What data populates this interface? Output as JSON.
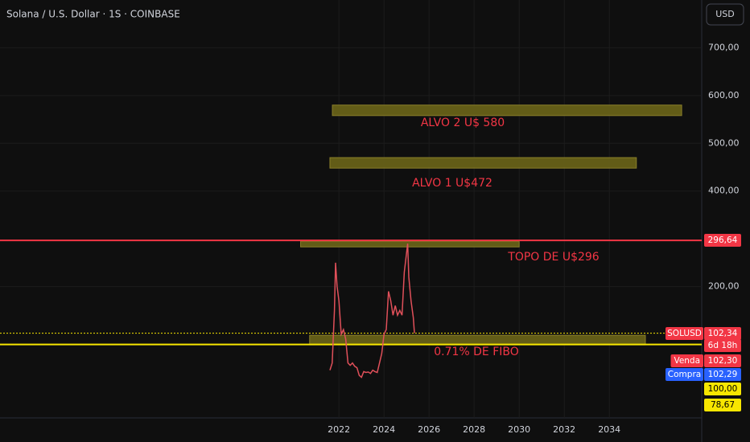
{
  "header": {
    "symbol": "Solana / U.S. Dollar · 1S · COINBASE",
    "currency_button": "USD"
  },
  "chart_data": {
    "type": "line",
    "x": [
      2021.6,
      2021.7,
      2021.8,
      2021.85,
      2021.92,
      2022.0,
      2022.1,
      2022.2,
      2022.3,
      2022.4,
      2022.5,
      2022.6,
      2022.7,
      2022.8,
      2022.9,
      2023.0,
      2023.1,
      2023.2,
      2023.3,
      2023.4,
      2023.5,
      2023.6,
      2023.7,
      2023.8,
      2023.9,
      2024.0,
      2024.1,
      2024.2,
      2024.3,
      2024.4,
      2024.5,
      2024.6,
      2024.7,
      2024.8,
      2024.9,
      2025.05,
      2025.1,
      2025.2,
      2025.3,
      2025.35
    ],
    "series": [
      {
        "name": "SOLUSD",
        "color": "#e0505a",
        "values": [
          25,
          40,
          150,
          250,
          200,
          170,
          100,
          110,
          90,
          40,
          35,
          40,
          33,
          30,
          14,
          10,
          22,
          20,
          21,
          18,
          25,
          22,
          20,
          40,
          60,
          100,
          110,
          190,
          170,
          140,
          160,
          140,
          150,
          140,
          230,
          290,
          220,
          170,
          135,
          102.34
        ]
      }
    ],
    "xlim": [
      2006.96,
      2038.1
    ],
    "xticks": [
      2022,
      2024,
      2026,
      2028,
      2030,
      2032,
      2034
    ],
    "ylim": [
      -75,
      800
    ],
    "yticks": [
      {
        "value": 200,
        "label": "200,00"
      },
      {
        "value": 400,
        "label": "400,00"
      },
      {
        "value": 500,
        "label": "500,00"
      },
      {
        "value": 600,
        "label": "600,00"
      },
      {
        "value": 700,
        "label": "700,00"
      }
    ],
    "grid": true,
    "zones": [
      {
        "label": "ALVO 2 U$ 580",
        "x": [
          2021.71,
          2037.21
        ],
        "y": [
          558,
          580
        ],
        "color": "#6b6518"
      },
      {
        "label": "ALVO 1 U$472",
        "x": [
          2021.6,
          2035.2
        ],
        "y": [
          448,
          470
        ],
        "color": "#6b6518"
      },
      {
        "label": "TOPO DE U$296",
        "x": [
          2020.3,
          2030.0
        ],
        "y": [
          283,
          295
        ],
        "color": "#6b6518"
      },
      {
        "label": "0.71% DE FIBO",
        "x": [
          2020.7,
          2035.6
        ],
        "y": [
          78,
          98
        ],
        "color": "#6b6518"
      }
    ],
    "annotation_color": "#f23645",
    "hlines": [
      {
        "value": 296.64,
        "color": "#f23645",
        "dashed": false
      },
      {
        "value": 102.34,
        "color": "#f7e600",
        "dashed": true
      },
      {
        "value": 78.67,
        "color": "#f7e600",
        "dashed": false
      }
    ],
    "price_tags": [
      {
        "label": "296,64",
        "color": "#f23645"
      },
      {
        "name": "SOLUSD",
        "label": "102,34",
        "color": "#f23645"
      },
      {
        "label": "6d 18h",
        "color": "#f23645"
      },
      {
        "name": "Venda",
        "label": "102,30",
        "color": "#f23645"
      },
      {
        "name": "Compra",
        "label": "102,29",
        "color": "#2962ff"
      },
      {
        "label": "100,00",
        "color": "#f7e600"
      },
      {
        "label": "78,67",
        "color": "#f7e600"
      }
    ]
  }
}
